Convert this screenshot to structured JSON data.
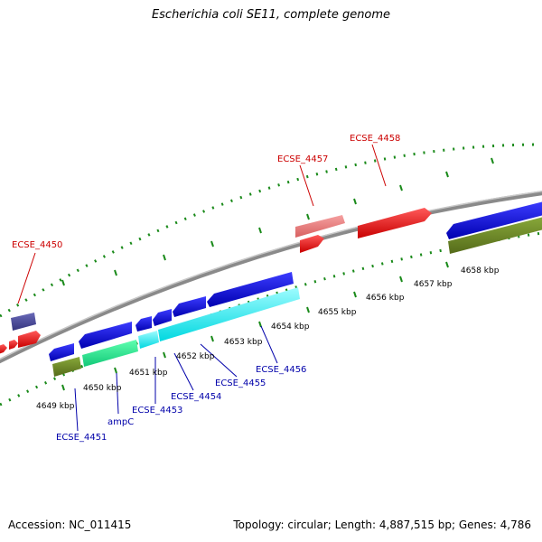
{
  "title": "Escherichia coli SE11, complete genome",
  "footer": {
    "accession": "Accession: NC_011415",
    "summary": "Topology: circular; Length: 4,887,515 bp; Genes: 4,786"
  },
  "colors": {
    "forward_gene": "#ff0000",
    "forward_gene_light": "#f08080",
    "reverse_gene": "#0000ee",
    "cds_cyan": "#00ffff",
    "cds_green": "#00ee88",
    "cds_olive": "#6b8e23",
    "cds_navy": "#4b4b9e",
    "ticks": "#1a8a1a",
    "backbone": "#888888",
    "label_forward": "#cc0000",
    "label_reverse": "#0000aa"
  },
  "scale_labels": [
    "4649 kbp",
    "4650 kbp",
    "4651 kbp",
    "4652 kbp",
    "4653 kbp",
    "4654 kbp",
    "4655 kbp",
    "4656 kbp",
    "4657 kbp",
    "4658 kbp"
  ],
  "forward_gene_labels": [
    "ECSE_4450",
    "ECSE_4457",
    "ECSE_4458"
  ],
  "reverse_gene_labels": [
    "ECSE_4451",
    "ampC",
    "ECSE_4453",
    "ECSE_4454",
    "ECSE_4455",
    "ECSE_4456"
  ]
}
